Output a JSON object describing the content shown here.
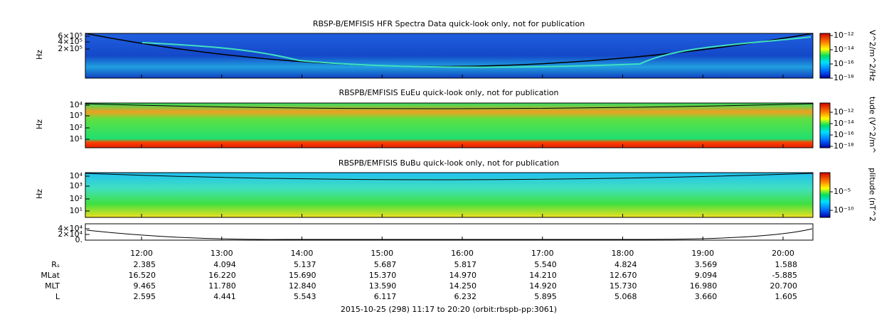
{
  "panels": [
    {
      "title": "RBSP-B/EMFISIS  HFR Spectra Data quick-look only, not for publication",
      "ylabel": "Hz",
      "yticks": [
        "6×10⁵",
        "4×10⁵",
        "2×10⁵"
      ],
      "colorbar_label": "V^2/m^2/Hz",
      "colorbar_ticks": [
        "10⁻¹²",
        "10⁻¹⁴",
        "10⁻¹⁶",
        "10⁻¹⁸"
      ]
    },
    {
      "title": "RBSPB/EMFISIS  EuEu quick-look only, not for publication",
      "ylabel": "Hz",
      "yticks": [
        "10⁴",
        "10³",
        "10²",
        "10¹"
      ],
      "colorbar_label": "tude (V^2/m^",
      "colorbar_ticks": [
        "10⁻¹²",
        "10⁻¹⁴",
        "10⁻¹⁶",
        "10⁻¹⁸"
      ]
    },
    {
      "title": "RBSPB/EMFISIS  BuBu quick-look only, not for publication",
      "ylabel": "Hz",
      "yticks": [
        "10⁴",
        "10³",
        "10²",
        "10¹"
      ],
      "colorbar_label": "plitude (nT^2",
      "colorbar_ticks": [
        "10⁻⁵",
        "10⁻¹⁰"
      ]
    },
    {
      "yticks": [
        "4×10⁴",
        "2×10⁴",
        "0."
      ]
    }
  ],
  "time_ticks": [
    "12:00",
    "13:00",
    "14:00",
    "15:00",
    "16:00",
    "17:00",
    "18:00",
    "19:00",
    "20:00"
  ],
  "ephemeris": [
    {
      "label": "Rₛ",
      "values": [
        "2.385",
        "4.094",
        "5.137",
        "5.687",
        "5.817",
        "5.540",
        "4.824",
        "3.569",
        "1.588"
      ]
    },
    {
      "label": "MLat",
      "values": [
        "16.520",
        "16.220",
        "15.690",
        "15.370",
        "14.970",
        "14.210",
        "12.670",
        "9.094",
        "-5.885"
      ]
    },
    {
      "label": "MLT",
      "values": [
        "9.465",
        "11.780",
        "12.840",
        "13.590",
        "14.250",
        "14.920",
        "15.730",
        "16.980",
        "20.700"
      ]
    },
    {
      "label": "L",
      "values": [
        "2.595",
        "4.441",
        "5.543",
        "6.117",
        "6.232",
        "5.895",
        "5.068",
        "3.660",
        "1.605"
      ]
    }
  ],
  "footer": "2015-10-25 (298) 11:17 to 20:20 (orbit:rbspb-pp:3061)"
}
